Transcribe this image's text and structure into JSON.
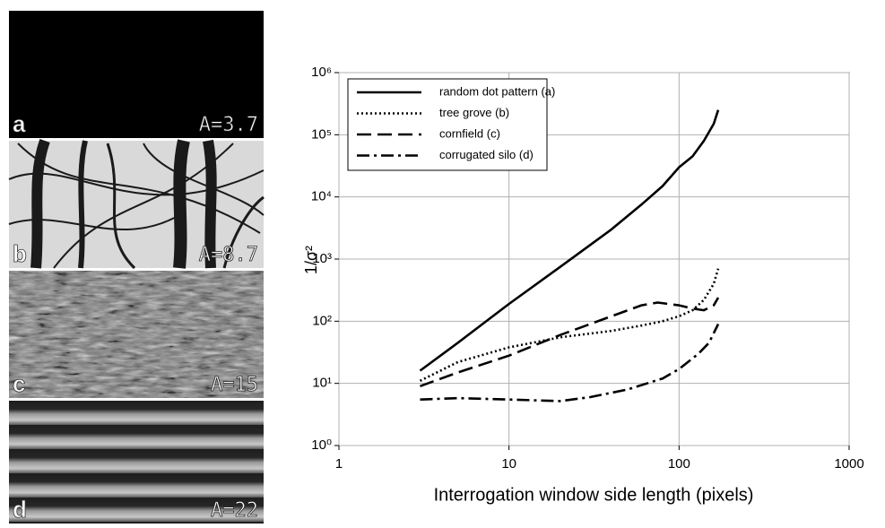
{
  "panels": [
    {
      "letter": "a",
      "caption": "A=3.7"
    },
    {
      "letter": "b",
      "caption": "A=8.7"
    },
    {
      "letter": "c",
      "caption": "A=15"
    },
    {
      "letter": "d",
      "caption": "A=22"
    }
  ],
  "chart_data": {
    "type": "line",
    "x_label": "Interrogation window side length (pixels)",
    "y_label": "1/σ²",
    "x_log": true,
    "y_log": true,
    "grid": true,
    "legend": "top-left",
    "xlim": [
      1,
      1000
    ],
    "xticks": [
      1,
      10,
      100,
      1000
    ],
    "ylim": [
      1,
      1000000
    ],
    "yticks": [
      {
        "value": 1,
        "label": "10⁰"
      },
      {
        "value": 10,
        "label": "10¹"
      },
      {
        "value": 100,
        "label": "10²"
      },
      {
        "value": 1000,
        "label": "10³"
      },
      {
        "value": 10000,
        "label": "10⁴"
      },
      {
        "value": 100000,
        "label": "10⁵"
      },
      {
        "value": 1000000,
        "label": "10⁶"
      }
    ],
    "series": [
      {
        "name": "random dot pattern (a)",
        "color": "#000000",
        "dash": "solid",
        "x": [
          3,
          5,
          10,
          20,
          40,
          60,
          80,
          100,
          120,
          140,
          160,
          170
        ],
        "values": [
          16,
          45,
          190,
          750,
          3000,
          7500,
          15000,
          30000,
          45000,
          80000,
          150000,
          250000
        ]
      },
      {
        "name": "tree grove (b)",
        "color": "#000000",
        "dash": "dotted",
        "x": [
          3,
          5,
          10,
          20,
          40,
          60,
          80,
          100,
          120,
          140,
          160,
          170
        ],
        "values": [
          11,
          22,
          38,
          55,
          70,
          85,
          100,
          120,
          150,
          220,
          400,
          700
        ]
      },
      {
        "name": "cornfield (c)",
        "color": "#000000",
        "dash": "dashed",
        "x": [
          3,
          5,
          10,
          20,
          40,
          60,
          75,
          100,
          120,
          140,
          160,
          170
        ],
        "values": [
          9,
          15,
          28,
          60,
          120,
          180,
          200,
          180,
          160,
          150,
          180,
          240
        ]
      },
      {
        "name": "corrugated silo (d)",
        "color": "#000000",
        "dash": "dashdot",
        "x": [
          3,
          5,
          10,
          20,
          30,
          50,
          80,
          100,
          130,
          150,
          170
        ],
        "values": [
          5.5,
          5.8,
          5.5,
          5.2,
          6,
          8,
          12,
          17,
          30,
          45,
          90
        ]
      }
    ]
  }
}
